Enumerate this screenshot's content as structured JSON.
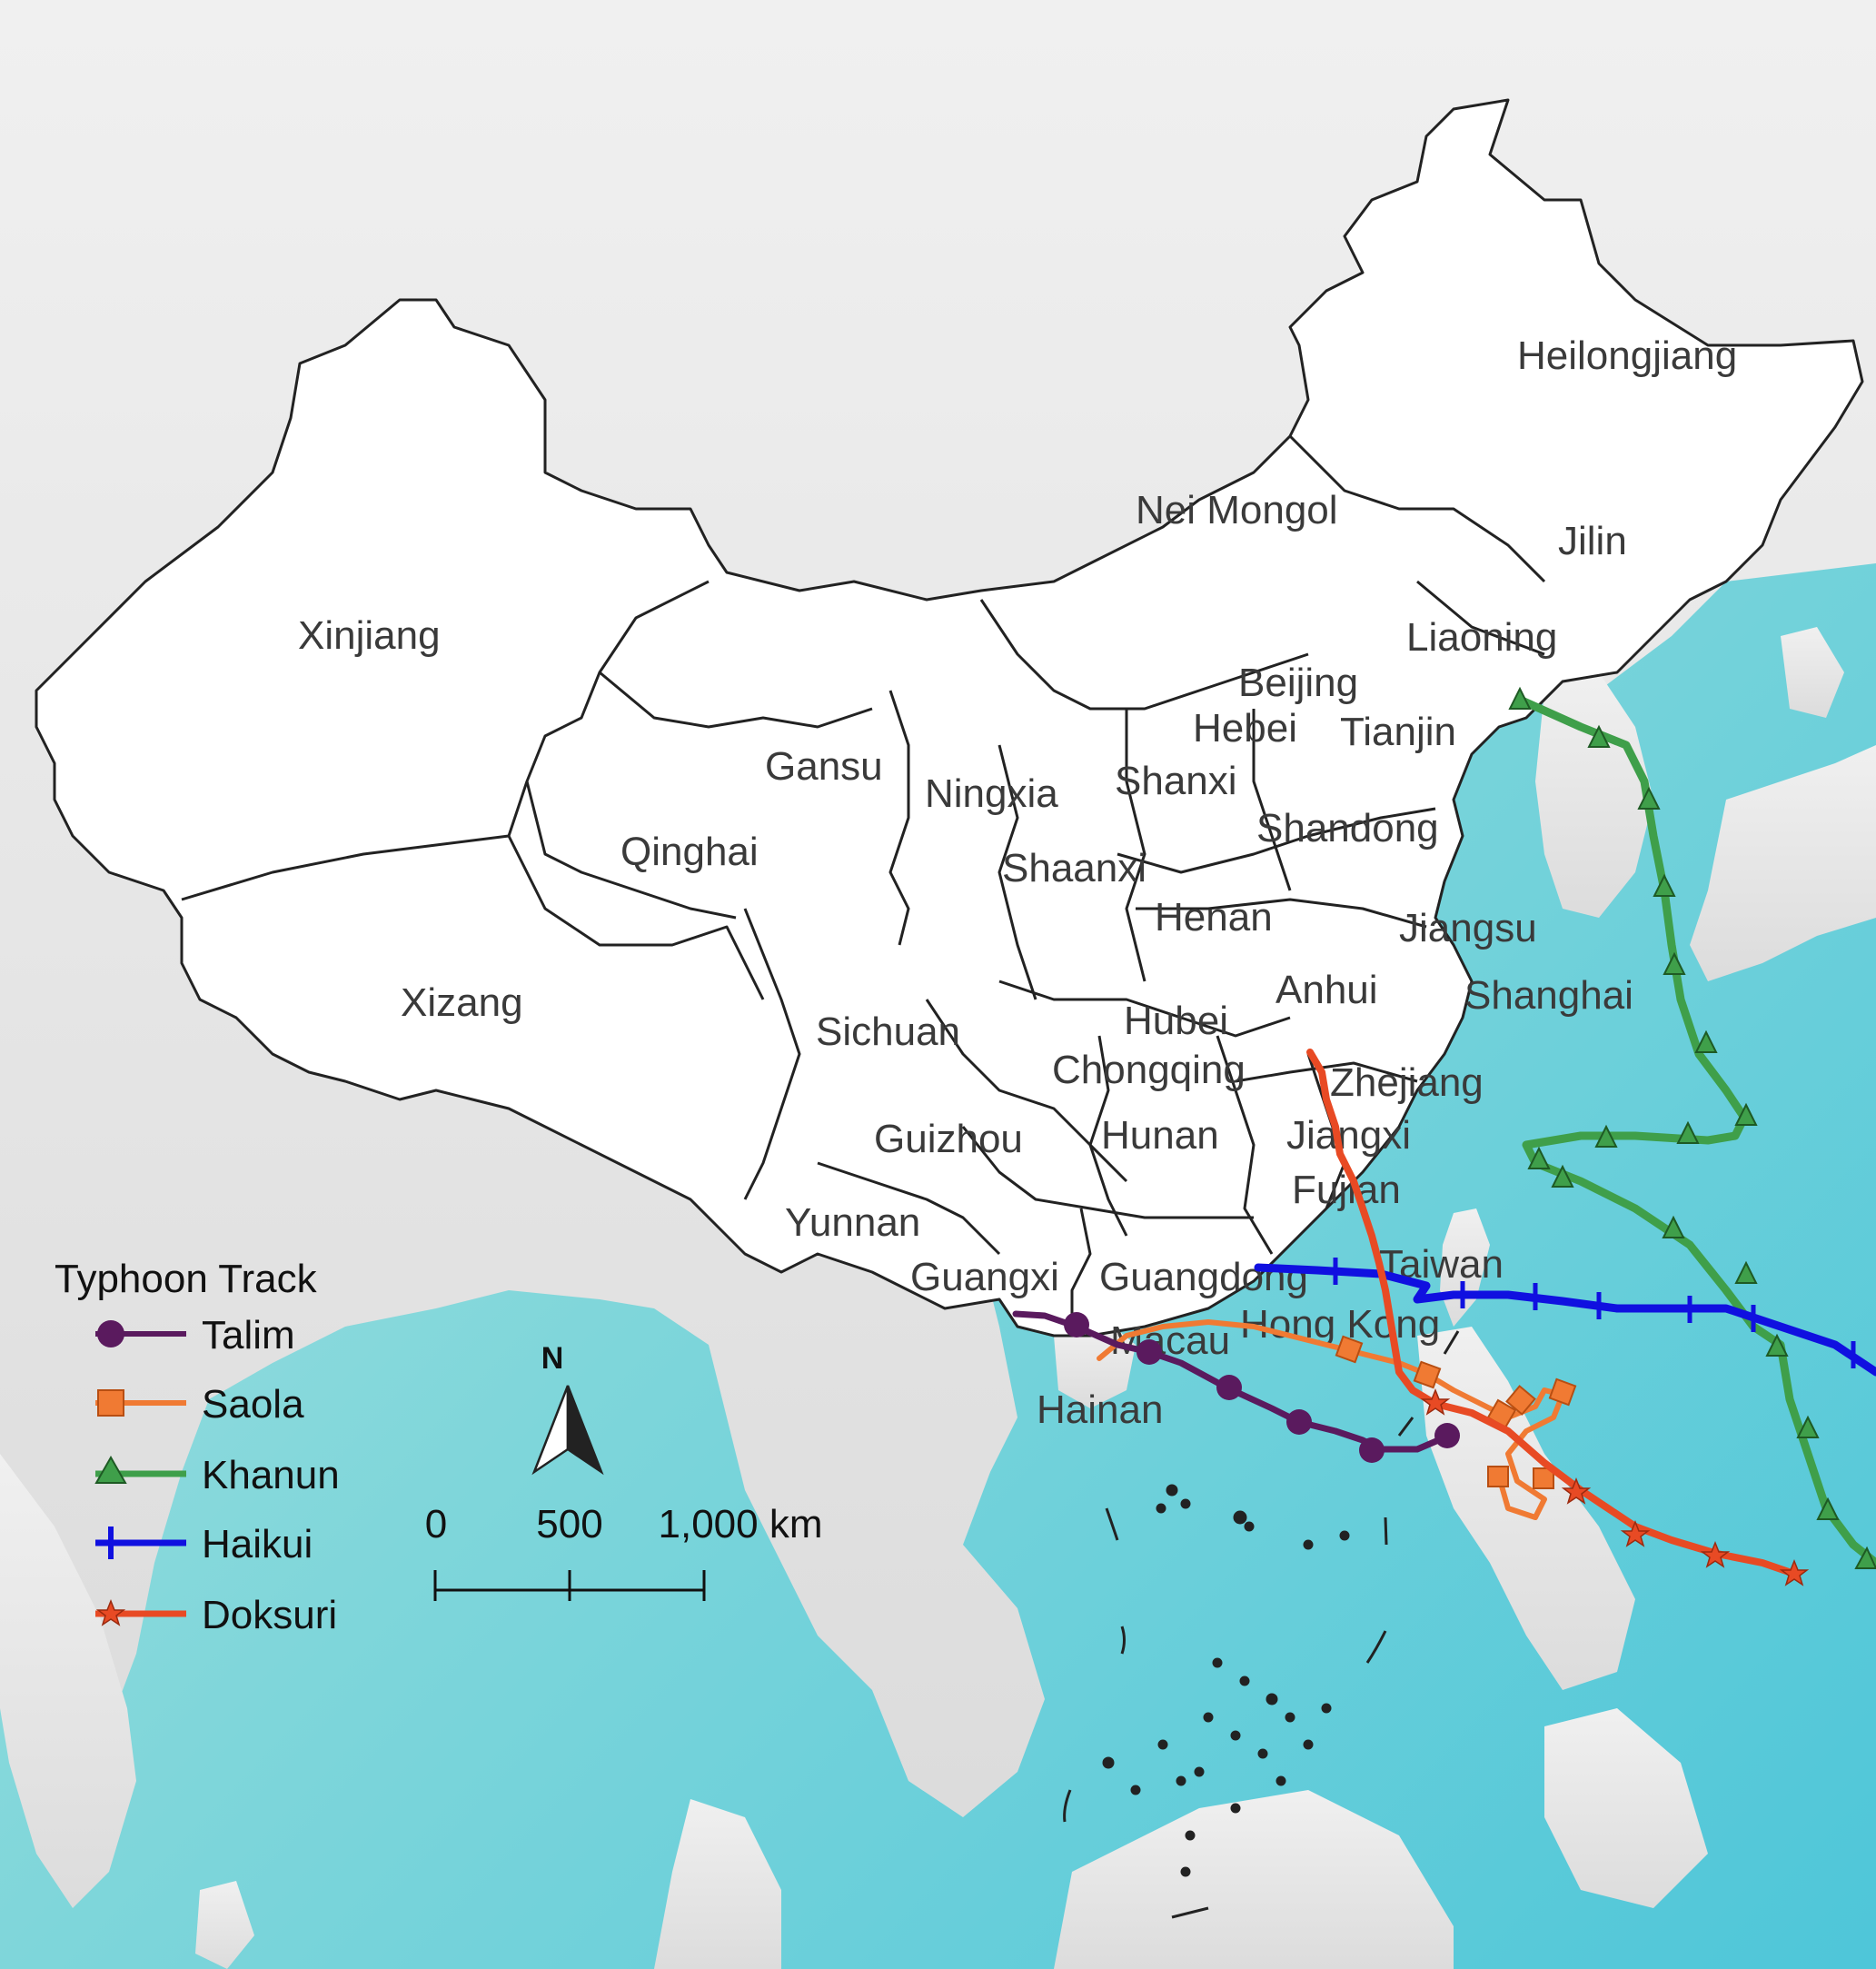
{
  "map": {
    "provinces": [
      {
        "id": "heilongjiang",
        "name": "Heilongjiang"
      },
      {
        "id": "nei-mongol",
        "name": "Nei Mongol"
      },
      {
        "id": "jilin",
        "name": "Jilin"
      },
      {
        "id": "xinjiang",
        "name": "Xinjiang"
      },
      {
        "id": "liaoning",
        "name": "Liaoning"
      },
      {
        "id": "beijing",
        "name": "Beijing"
      },
      {
        "id": "hebei",
        "name": "Hebei"
      },
      {
        "id": "tianjin",
        "name": "Tianjin"
      },
      {
        "id": "gansu",
        "name": "Gansu"
      },
      {
        "id": "ningxia",
        "name": "Ningxia"
      },
      {
        "id": "shanxi",
        "name": "Shanxi"
      },
      {
        "id": "shandong",
        "name": "Shandong"
      },
      {
        "id": "qinghai",
        "name": "Qinghai"
      },
      {
        "id": "shaanxi",
        "name": "Shaanxi"
      },
      {
        "id": "henan",
        "name": "Henan"
      },
      {
        "id": "jiangsu",
        "name": "Jiangsu"
      },
      {
        "id": "anhui",
        "name": "Anhui"
      },
      {
        "id": "shanghai",
        "name": "Shanghai"
      },
      {
        "id": "xizang",
        "name": "Xizang"
      },
      {
        "id": "hubei",
        "name": "Hubei"
      },
      {
        "id": "sichuan",
        "name": "Sichuan"
      },
      {
        "id": "chongqing",
        "name": "Chongqing"
      },
      {
        "id": "zhejiang",
        "name": "Zhejiang"
      },
      {
        "id": "guizhou",
        "name": "Guizhou"
      },
      {
        "id": "hunan",
        "name": "Hunan"
      },
      {
        "id": "jiangxi",
        "name": "Jiangxi"
      },
      {
        "id": "fujian",
        "name": "Fujian"
      },
      {
        "id": "yunnan",
        "name": "Yunnan"
      },
      {
        "id": "taiwan",
        "name": "Taiwan"
      },
      {
        "id": "guangxi",
        "name": "Guangxi"
      },
      {
        "id": "guangdong",
        "name": "Guangdong"
      },
      {
        "id": "hong-kong",
        "name": "Hong Kong"
      },
      {
        "id": "macau",
        "name": "Macau"
      },
      {
        "id": "hainan",
        "name": "Hainan"
      }
    ]
  },
  "legend": {
    "title": "Typhoon Track",
    "items": [
      {
        "name": "Talim",
        "color": "#5a1a5e",
        "marker": "circle"
      },
      {
        "name": "Saola",
        "color": "#f07a33",
        "marker": "square"
      },
      {
        "name": "Khanun",
        "color": "#3f9f4a",
        "marker": "triangle"
      },
      {
        "name": "Haikui",
        "color": "#1010e0",
        "marker": "tick"
      },
      {
        "name": "Doksuri",
        "color": "#e84a24",
        "marker": "star"
      }
    ]
  },
  "north_arrow": {
    "label": "N"
  },
  "scale_bar": {
    "ticks": [
      "0",
      "500",
      "1,000 km"
    ]
  },
  "colors": {
    "sea": "#9fdcdc",
    "deep_sea": "#55c8d8",
    "land": "#e8e8e8",
    "china": "#ffffff",
    "boundary": "#222222"
  }
}
